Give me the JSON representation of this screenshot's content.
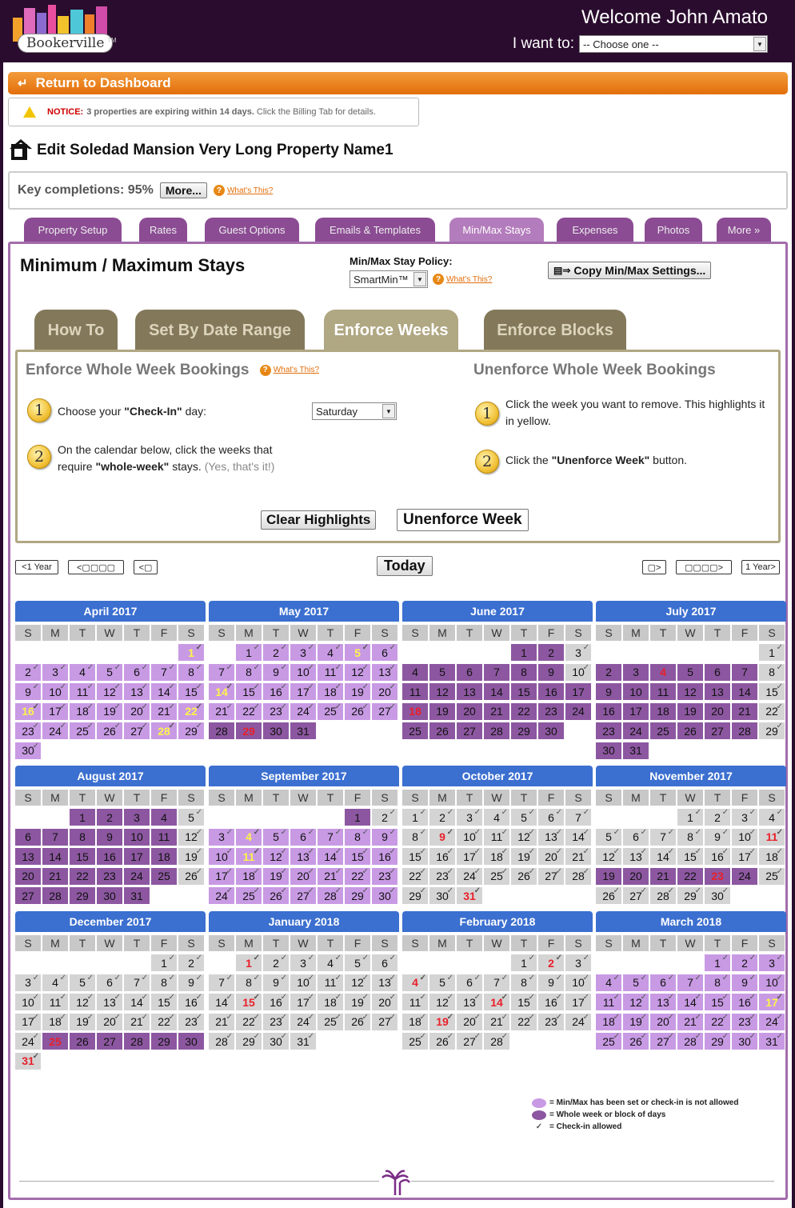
{
  "header": {
    "logo_text": "Bookerville",
    "tm": "TM",
    "welcome": "Welcome John Amato",
    "iwant_label": "I want to:",
    "iwant_value": "-- Choose one --"
  },
  "dashboard": {
    "label": "Return to Dashboard"
  },
  "notice": {
    "label": "NOTICE:",
    "text": "3 properties are expiring within 14 days.",
    "rest": "Click the Billing Tab for details."
  },
  "property": {
    "title": "Edit Soledad Mansion Very Long Property Name1"
  },
  "key": {
    "label": "Key completions: 95%",
    "more": "More...",
    "whats": "What's This?"
  },
  "tabs": [
    "Property Setup",
    "Rates",
    "Guest Options",
    "Emails & Templates",
    "Min/Max Stays",
    "Expenses",
    "Photos",
    "More »"
  ],
  "minmax": {
    "title": "Minimum / Maximum Stays",
    "policy_label": "Min/Max Stay Policy:",
    "policy_value": "SmartMin™",
    "whats": "What's This?",
    "copy": "Copy Min/Max Settings..."
  },
  "subtabs": [
    "How To",
    "Set By Date Range",
    "Enforce Weeks",
    "Enforce Blocks"
  ],
  "enforce": {
    "title": "Enforce Whole Week Bookings",
    "whats": "What's This?",
    "step1a": "Choose your ",
    "step1b": "\"Check-In\"",
    "step1c": " day:",
    "checkin": "Saturday",
    "step2a": "On the calendar below, click the weeks that",
    "step2b": "require ",
    "step2c": "\"whole-week\"",
    "step2d": " stays. ",
    "step2e": "(Yes, that's it!)"
  },
  "unenforce": {
    "title": "Unenforce Whole Week Bookings",
    "step1": "Click the week you want to remove. This highlights it in yellow.",
    "step2a": "Click the ",
    "step2b": "\"Unenforce Week\"",
    "step2c": " button."
  },
  "buttons": {
    "clear": "Clear Highlights",
    "unenforce": "Unenforce Week",
    "today": "Today",
    "prev_year": "1 Year",
    "next_year": "1 Year"
  },
  "dow": [
    "S",
    "M",
    "T",
    "W",
    "T",
    "F",
    "S"
  ],
  "months": [
    {
      "name": "April 2017",
      "offset": 6,
      "days": 30,
      "s": "LLLLLLLLLLLLLLLLLLLLLLLLLLLLLL",
      "red": [],
      "yel": [
        1,
        16,
        22,
        28
      ]
    },
    {
      "name": "May 2017",
      "offset": 1,
      "days": 31,
      "s": "LLLLLLLLLLLLLLLLLLLLLLLLLLLDDDDD",
      "red": [
        29
      ],
      "yel": [
        5,
        14
      ]
    },
    {
      "name": "June 2017",
      "offset": 4,
      "days": 30,
      "s": "DDNDDDDDDNDDDDDDDDDDDDDDDDDDDD",
      "red": [
        18
      ],
      "yel": []
    },
    {
      "name": "July 2017",
      "offset": 6,
      "days": 31,
      "s": "NDDDDDDNDDDDDDNDDDDDDNDDDDDDNDD",
      "red": [
        4
      ],
      "yel": []
    },
    {
      "name": "August 2017",
      "offset": 2,
      "days": 31,
      "s": "DDDDNDDDDDDNDDDDDDNDDDDDDNDDDDD",
      "red": [],
      "yel": []
    },
    {
      "name": "September 2017",
      "offset": 5,
      "days": 30,
      "s": "DNLLLLLLLLLLLLLLLLLLLLLLLLLLLL",
      "red": [],
      "yel": [
        4,
        11
      ]
    },
    {
      "name": "October 2017",
      "offset": 0,
      "days": 31,
      "s": "NNNNNNNNNNNNNNNNNNNNNNNNNNNNNNN",
      "red": [
        9,
        31
      ],
      "yel": []
    },
    {
      "name": "November 2017",
      "offset": 3,
      "days": 30,
      "s": "NNNNNNNNNNNNNNNNNNDDDDDDNNNNNN",
      "red": [
        11,
        23
      ],
      "yel": []
    },
    {
      "name": "December 2017",
      "offset": 5,
      "days": 31,
      "s": "NNNNNNNNNNNNNNNNNNNNNNNNDDDDDDNN",
      "red": [
        25,
        31
      ],
      "yel": []
    },
    {
      "name": "January 2018",
      "offset": 1,
      "days": 31,
      "s": "NNNNNNNNNNNNNNNNNNNNNNNNNNNNNNN",
      "red": [
        1,
        15
      ],
      "yel": []
    },
    {
      "name": "February 2018",
      "offset": 4,
      "days": 28,
      "s": "NNNNNNNNNNNNNNNNNNNNNNNNNNNN",
      "red": [
        2,
        4,
        14,
        19
      ],
      "yel": []
    },
    {
      "name": "March 2018",
      "offset": 4,
      "days": 31,
      "s": "LLLLLLLLLLLLLLLLLLLLLLLLLLLLLLL",
      "red": [],
      "yel": [
        17
      ]
    }
  ],
  "legend": {
    "light": "= Min/Max has been set or check-in is not allowed",
    "dark": "= Whole week or block of days",
    "check": "= Check-in allowed",
    "light_color": "#c89ae4",
    "dark_color": "#8c57a0"
  }
}
